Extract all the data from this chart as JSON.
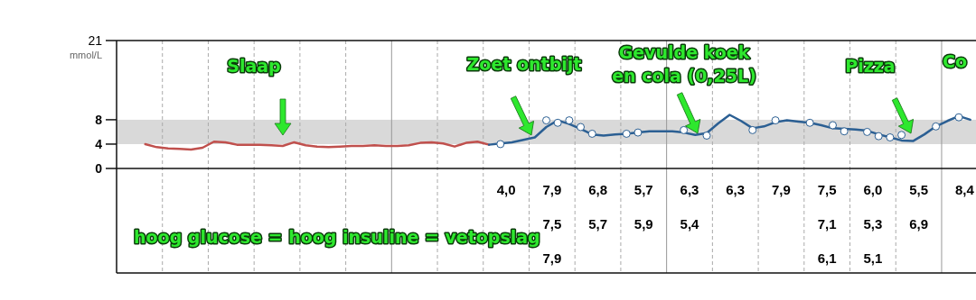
{
  "chart_data": {
    "type": "line",
    "ylabel": "mmol/L",
    "categories": [
      null,
      null,
      null,
      null,
      null,
      null,
      null,
      null,
      null,
      null,
      null,
      null,
      null,
      null,
      null,
      null,
      null,
      null,
      null,
      null,
      null,
      null,
      null,
      null,
      null,
      null,
      null,
      null,
      null,
      null,
      null,
      null,
      null,
      null,
      null,
      null,
      null,
      null,
      null,
      null,
      null,
      null,
      null,
      null,
      null,
      null,
      null,
      null,
      null,
      null,
      null,
      null,
      null,
      null,
      null,
      null,
      null,
      null,
      null,
      null,
      null,
      null,
      null,
      null,
      null,
      null,
      null,
      null,
      null,
      null,
      null,
      null,
      null,
      null,
      null
    ],
    "ylim": [
      0,
      21
    ],
    "yticks": [
      0,
      4,
      8,
      21
    ],
    "grid": "x",
    "bands": [
      {
        "axis": "y",
        "from": 4,
        "to": 8,
        "color": "#d9d9d9"
      }
    ],
    "series": [
      {
        "color": "#c0504d",
        "values": [
          null,
          null,
          4.0,
          3.5,
          3.3,
          3.2,
          3.1,
          3.4,
          4.4,
          4.3,
          3.9,
          3.9,
          3.9,
          3.8,
          3.7,
          4.3,
          3.8,
          3.6,
          3.5,
          3.6,
          3.7,
          3.7,
          3.8,
          3.7,
          3.7,
          3.8,
          4.2,
          4.3,
          4.1,
          3.6,
          4.2,
          4.4,
          3.9,
          null,
          null,
          null,
          null,
          null,
          null,
          null,
          null,
          null,
          null,
          null,
          null,
          null,
          null,
          null,
          null,
          null,
          null,
          null,
          null,
          null,
          null,
          null,
          null,
          null,
          null,
          null,
          null,
          null,
          null,
          null,
          null,
          null,
          null,
          null,
          null,
          null,
          null,
          null,
          null,
          null,
          null
        ]
      },
      {
        "color": "#2b5f93",
        "values": [
          null,
          null,
          null,
          null,
          null,
          null,
          null,
          null,
          null,
          null,
          null,
          null,
          null,
          null,
          null,
          null,
          null,
          null,
          null,
          null,
          null,
          null,
          null,
          null,
          null,
          null,
          null,
          null,
          null,
          null,
          null,
          null,
          3.9,
          4.1,
          4.3,
          4.7,
          5.1,
          6.8,
          7.9,
          7.3,
          6.5,
          5.6,
          5.4,
          5.6,
          5.7,
          5.9,
          6.1,
          6.1,
          6.1,
          5.9,
          5.5,
          5.8,
          7.4,
          8.8,
          7.8,
          6.6,
          6.9,
          7.6,
          7.9,
          7.7,
          7.5,
          7.1,
          6.6,
          6.5,
          6.4,
          6.2,
          5.6,
          5.1,
          4.6,
          4.5,
          5.6,
          6.9,
          7.8,
          8.6,
          8.0
        ]
      },
      {
        "type": "scatter",
        "color": "#ffffff",
        "marker": "circle",
        "values": [
          null,
          null,
          null,
          null,
          null,
          null,
          null,
          null,
          null,
          null,
          null,
          null,
          null,
          null,
          null,
          null,
          null,
          null,
          null,
          null,
          null,
          null,
          null,
          null,
          null,
          null,
          null,
          null,
          null,
          null,
          null,
          null,
          null,
          4.0,
          null,
          null,
          null,
          7.9,
          7.5,
          7.9,
          6.8,
          5.7,
          null,
          null,
          5.7,
          5.9,
          null,
          null,
          null,
          6.3,
          null,
          5.4,
          null,
          null,
          null,
          6.3,
          null,
          7.9,
          null,
          null,
          7.5,
          null,
          7.1,
          6.1,
          null,
          6.0,
          5.3,
          5.1,
          5.5,
          null,
          null,
          6.9,
          null,
          8.4,
          null
        ]
      }
    ],
    "annotations": [
      "Slaap",
      "Zoet ontbijt",
      "Gevulde koek\nen cola (0,25L)",
      "Pizza",
      "hoog glucose = hoog insuline = vetopslag",
      "Co",
      "4,0",
      "7,9",
      "7,5",
      "7,9",
      "6,8",
      "5,7",
      "5,7",
      "5,9",
      "6,3",
      "5,4",
      "6,3",
      "7,9",
      "7,5",
      "7,1",
      "6,1",
      "6,0",
      "5,3",
      "5,1",
      "5,5",
      "6,9",
      "8,4"
    ]
  }
}
